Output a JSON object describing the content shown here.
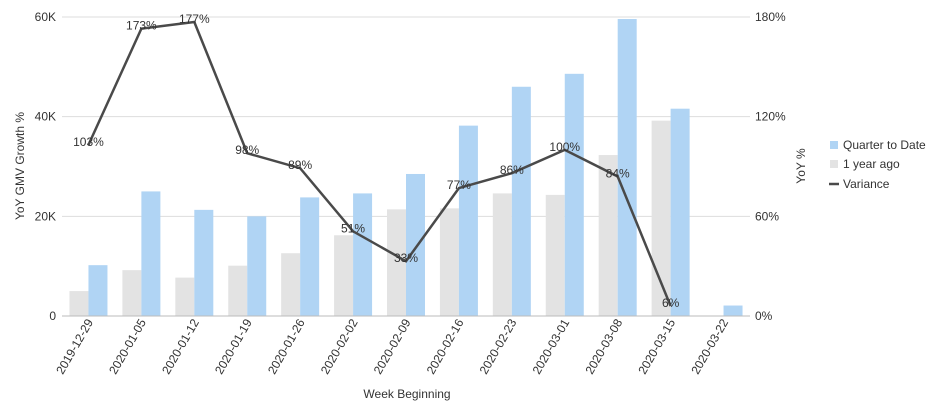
{
  "chart_data": {
    "type": "bar",
    "title": "",
    "xlabel": "Week Beginning",
    "ylabel_left": "YoY GMV Growth %",
    "ylabel_right": "YoY %",
    "ylim_left": [
      0,
      60000
    ],
    "ylim_right": [
      0,
      180
    ],
    "yticks_left": [
      "0",
      "20K",
      "40K",
      "60K"
    ],
    "yticks_right": [
      "0%",
      "60%",
      "120%",
      "180%"
    ],
    "grid": true,
    "legend_position": "right",
    "categories": [
      "2019-12-29",
      "2020-01-05",
      "2020-01-12",
      "2020-01-19",
      "2020-01-26",
      "2020-02-02",
      "2020-02-09",
      "2020-02-16",
      "2020-02-23",
      "2020-03-01",
      "2020-03-08",
      "2020-03-15",
      "2020-03-22"
    ],
    "series": [
      {
        "name": "Quarter to Date",
        "type": "bar",
        "axis": "left",
        "color": "#b0d4f4",
        "values": [
          10200,
          25000,
          21300,
          20000,
          23800,
          24600,
          28500,
          38200,
          46000,
          48600,
          59600,
          41600,
          2100
        ]
      },
      {
        "name": "1 year ago",
        "type": "bar",
        "axis": "left",
        "color": "#e3e3e3",
        "values": [
          5000,
          9200,
          7700,
          10100,
          12600,
          16200,
          21400,
          21600,
          24600,
          24300,
          32300,
          39200,
          null
        ]
      },
      {
        "name": "Variance",
        "type": "line",
        "axis": "right",
        "color": "#4a4a4a",
        "values": [
          103,
          173,
          177,
          98,
          89,
          51,
          33,
          77,
          86,
          100,
          84,
          6,
          null
        ],
        "labels": [
          "103%",
          "173%",
          "177%",
          "98%",
          "89%",
          "51%",
          "33%",
          "77%",
          "86%",
          "100%",
          "84%",
          "6%",
          ""
        ]
      }
    ]
  }
}
